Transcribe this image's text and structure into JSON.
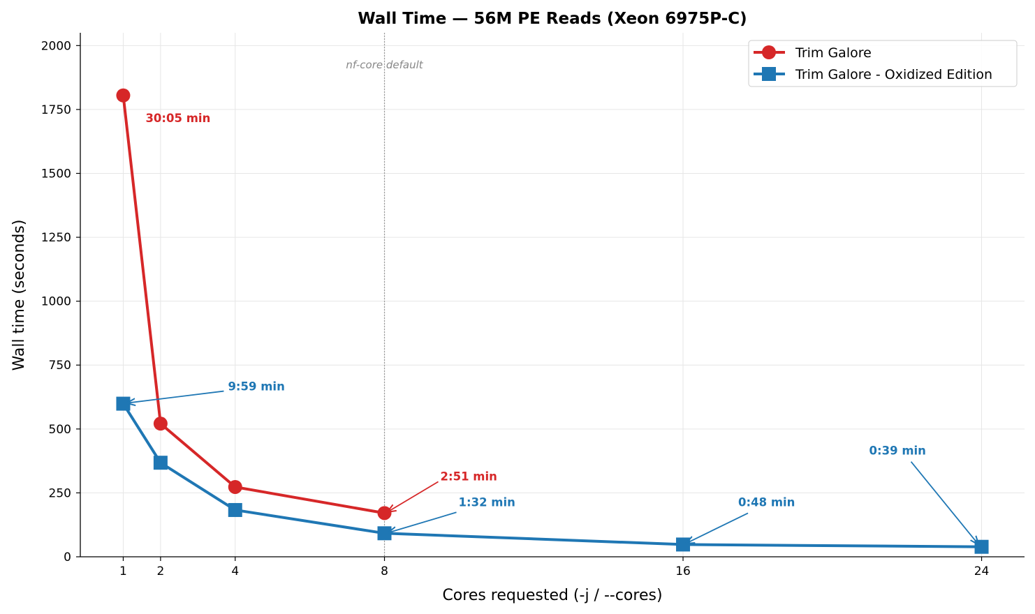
{
  "chart_data": {
    "type": "line",
    "title": "Wall Time — 56M PE Reads (Xeon 6975P-C)",
    "xlabel": "Cores requested (-j / --cores)",
    "ylabel": "Wall time (seconds)",
    "xlim": [
      -0.15,
      25.15
    ],
    "ylim": [
      0,
      2050
    ],
    "xticks": [
      1,
      2,
      4,
      8,
      16,
      24
    ],
    "yticks": [
      0,
      250,
      500,
      750,
      1000,
      1250,
      1500,
      1750,
      2000
    ],
    "grid": true,
    "legend_placement": "top-right",
    "series": [
      {
        "name": "Trim Galore",
        "color": "#d62728",
        "marker": "circle",
        "x": [
          1,
          2,
          4,
          8
        ],
        "y": [
          1805,
          521,
          273,
          171
        ]
      },
      {
        "name": "Trim Galore - Oxidized Edition",
        "color": "#1f77b4",
        "marker": "square",
        "x": [
          1,
          2,
          4,
          8,
          16,
          24
        ],
        "y": [
          599,
          368,
          183,
          92,
          48,
          39
        ]
      }
    ],
    "reference_line": {
      "x": 8,
      "label": "nf-core default",
      "color": "#999999"
    },
    "annotations": [
      {
        "text": "30:05 min",
        "series": 0,
        "x": 1,
        "y": 1805,
        "arrow": false
      },
      {
        "text": "9:59 min",
        "series": 1,
        "x": 1,
        "y": 599,
        "arrow": true
      },
      {
        "text": "2:51 min",
        "series": 0,
        "x": 8,
        "y": 171,
        "arrow": true
      },
      {
        "text": "1:32 min",
        "series": 1,
        "x": 8,
        "y": 92,
        "arrow": true
      },
      {
        "text": "0:48 min",
        "series": 1,
        "x": 16,
        "y": 48,
        "arrow": true
      },
      {
        "text": "0:39 min",
        "series": 1,
        "x": 24,
        "y": 39,
        "arrow": true
      }
    ]
  }
}
